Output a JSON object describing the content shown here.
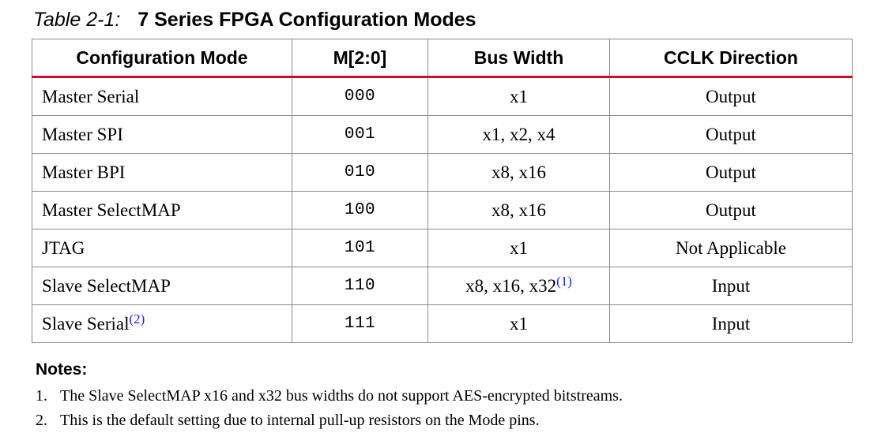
{
  "caption": {
    "label": "Table 2-1:",
    "title": "7 Series FPGA Configuration Modes"
  },
  "table": {
    "headers": [
      "Configuration Mode",
      "M[2:0]",
      "Bus Width",
      "CCLK Direction"
    ],
    "rows": [
      {
        "mode": "Master Serial",
        "mode_ref": "",
        "code": "000",
        "bus_width": "x1",
        "bus_ref": "",
        "cclk": "Output"
      },
      {
        "mode": "Master SPI",
        "mode_ref": "",
        "code": "001",
        "bus_width": "x1, x2, x4",
        "bus_ref": "",
        "cclk": "Output"
      },
      {
        "mode": "Master BPI",
        "mode_ref": "",
        "code": "010",
        "bus_width": "x8, x16",
        "bus_ref": "",
        "cclk": "Output"
      },
      {
        "mode": "Master SelectMAP",
        "mode_ref": "",
        "code": "100",
        "bus_width": "x8, x16",
        "bus_ref": "",
        "cclk": "Output"
      },
      {
        "mode": "JTAG",
        "mode_ref": "",
        "code": "101",
        "bus_width": "x1",
        "bus_ref": "",
        "cclk": "Not Applicable"
      },
      {
        "mode": "Slave SelectMAP",
        "mode_ref": "",
        "code": "110",
        "bus_width": "x8, x16, x32",
        "bus_ref": "(1)",
        "cclk": "Input"
      },
      {
        "mode": "Slave Serial",
        "mode_ref": "(2)",
        "code": "111",
        "bus_width": "x1",
        "bus_ref": "",
        "cclk": "Input"
      }
    ]
  },
  "notes": {
    "heading": "Notes:",
    "items": [
      {
        "number": "1.",
        "text": "The Slave SelectMAP x16 and x32 bus widths do not support AES-encrypted bitstreams."
      },
      {
        "number": "2.",
        "text": "This is the default setting due to internal pull-up resistors on the Mode pins."
      }
    ]
  },
  "colors": {
    "header_rule": "#c8102e",
    "reference_link": "#1a1aff",
    "grid_line": "#8a8a8a"
  }
}
